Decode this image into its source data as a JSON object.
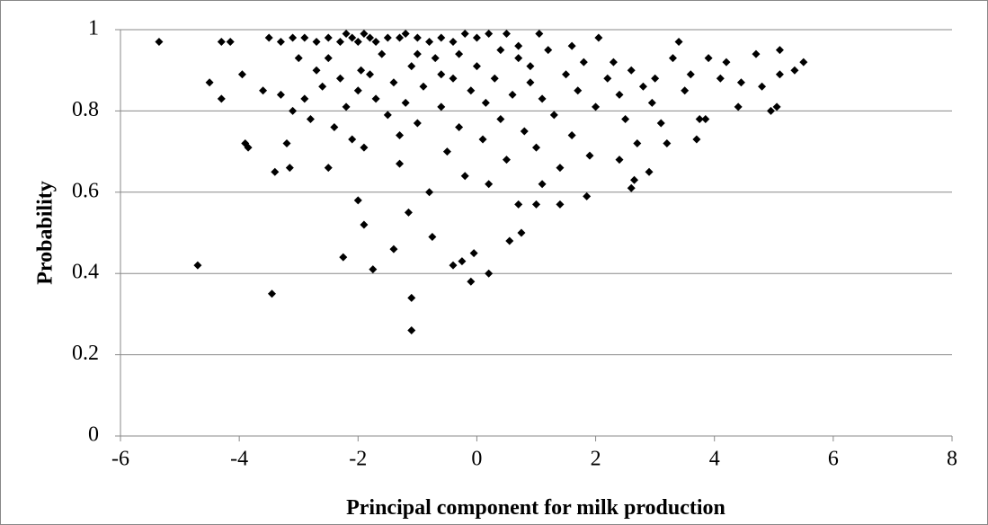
{
  "chart_data": {
    "type": "scatter",
    "x_label": "Principal component for milk production",
    "y_label": "Probability",
    "color": "#000000",
    "grid": true,
    "xlim": [
      -6,
      8
    ],
    "xticks": [
      -6,
      -4,
      -2,
      0,
      2,
      4,
      6,
      8
    ],
    "ylim": [
      0,
      1
    ],
    "yticks": [
      0,
      0.2,
      0.4,
      0.6,
      0.8,
      1
    ],
    "x": [
      -5.35,
      -4.7,
      -4.5,
      -4.3,
      -4.3,
      -4.15,
      -3.95,
      -3.9,
      -3.85,
      -3.45,
      -3.4,
      -3.2,
      -3.15,
      -2.5,
      -2.25,
      -2.0,
      -1.9,
      -1.75,
      -1.4,
      -1.1,
      -1.1,
      -1.15,
      -0.75,
      -0.4,
      -0.25,
      -0.1,
      -0.05,
      0.2,
      0.55,
      0.75,
      0.7,
      1.0,
      1.4,
      1.1,
      1.85,
      2.6,
      2.65,
      2.9,
      3.2,
      3.7,
      3.75,
      3.85,
      4.4,
      4.45,
      4.7,
      4.8,
      4.95,
      5.05,
      5.1,
      5.1,
      5.35,
      5.5,
      4.2,
      4.1,
      3.9,
      3.6,
      3.4,
      3.3,
      3.5,
      3.0,
      2.95,
      2.5,
      2.3,
      -3.5,
      -3.3,
      -3.1,
      -2.9,
      -2.7,
      -2.5,
      -2.3,
      -2.2,
      -2.1,
      -2.0,
      -1.9,
      -1.8,
      -1.7,
      -1.5,
      -1.3,
      -1.2,
      -1.0,
      -0.8,
      -0.6,
      -0.4,
      -0.2,
      0.0,
      0.2,
      0.5,
      0.7,
      1.05,
      2.05,
      -3.6,
      -3.3,
      -3.1,
      -2.9,
      -2.8,
      -2.7,
      -2.6,
      -2.4,
      -2.3,
      -2.2,
      -2.1,
      -2.0,
      -1.9,
      -1.8,
      -1.7,
      -1.6,
      -1.5,
      -1.4,
      -1.3,
      -1.3,
      -1.2,
      -1.1,
      -1.0,
      -0.9,
      -0.8,
      -0.7,
      -0.6,
      -0.5,
      -0.4,
      -0.3,
      -0.2,
      -0.1,
      0.0,
      0.1,
      0.15,
      0.2,
      0.3,
      0.4,
      0.5,
      0.6,
      0.7,
      0.8,
      0.9,
      1.0,
      1.1,
      1.2,
      1.3,
      1.4,
      1.5,
      1.6,
      1.7,
      1.8,
      1.9,
      2.0,
      2.2,
      2.4,
      2.6,
      2.7,
      2.8,
      3.1,
      -3.0,
      -2.5,
      -1.95,
      -1.0,
      -0.3,
      0.4,
      1.6,
      2.4,
      -0.6,
      0.9
    ],
    "values": [
      0.97,
      0.42,
      0.87,
      0.83,
      0.97,
      0.97,
      0.89,
      0.72,
      0.71,
      0.35,
      0.65,
      0.72,
      0.66,
      0.66,
      0.44,
      0.58,
      0.52,
      0.41,
      0.46,
      0.34,
      0.26,
      0.55,
      0.49,
      0.42,
      0.43,
      0.38,
      0.45,
      0.4,
      0.48,
      0.5,
      0.57,
      0.57,
      0.57,
      0.62,
      0.59,
      0.61,
      0.63,
      0.65,
      0.72,
      0.73,
      0.78,
      0.78,
      0.81,
      0.87,
      0.94,
      0.86,
      0.8,
      0.81,
      0.95,
      0.89,
      0.9,
      0.92,
      0.92,
      0.88,
      0.93,
      0.89,
      0.97,
      0.93,
      0.85,
      0.88,
      0.82,
      0.78,
      0.92,
      0.98,
      0.97,
      0.98,
      0.98,
      0.97,
      0.98,
      0.97,
      0.99,
      0.98,
      0.97,
      0.99,
      0.98,
      0.97,
      0.98,
      0.98,
      0.99,
      0.98,
      0.97,
      0.98,
      0.97,
      0.99,
      0.98,
      0.99,
      0.99,
      0.96,
      0.99,
      0.98,
      0.85,
      0.84,
      0.8,
      0.83,
      0.78,
      0.9,
      0.86,
      0.76,
      0.88,
      0.81,
      0.73,
      0.85,
      0.71,
      0.89,
      0.83,
      0.94,
      0.79,
      0.87,
      0.74,
      0.67,
      0.82,
      0.91,
      0.77,
      0.86,
      0.6,
      0.93,
      0.81,
      0.7,
      0.88,
      0.76,
      0.64,
      0.85,
      0.91,
      0.73,
      0.82,
      0.62,
      0.88,
      0.78,
      0.68,
      0.84,
      0.93,
      0.75,
      0.87,
      0.71,
      0.83,
      0.95,
      0.79,
      0.66,
      0.89,
      0.74,
      0.85,
      0.92,
      0.69,
      0.81,
      0.88,
      0.84,
      0.9,
      0.72,
      0.86,
      0.77,
      0.93,
      0.93,
      0.9,
      0.94,
      0.94,
      0.95,
      0.96,
      0.68,
      0.89,
      0.91
    ]
  }
}
